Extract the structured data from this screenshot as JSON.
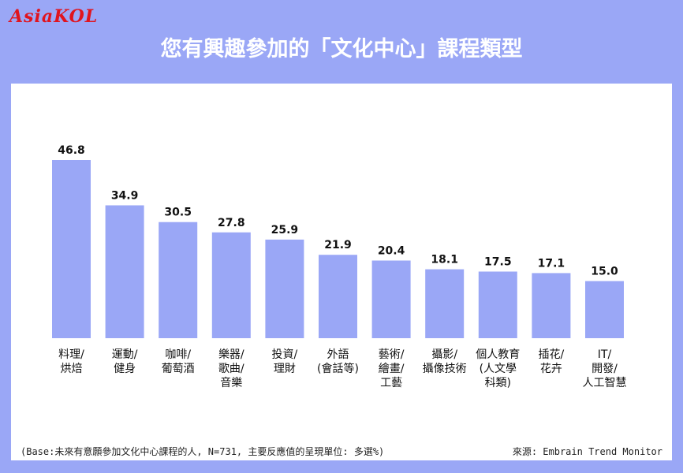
{
  "brand": {
    "logo_text": "AsiaKOL"
  },
  "header": {
    "title": "您有興趣參加的「文化中心」課程類型"
  },
  "colors": {
    "background": "#9aa7f6",
    "bar": "#9aa7f6",
    "title": "#ffffff",
    "logo": "#e0141e"
  },
  "chart_data": {
    "type": "bar",
    "title": "您有興趣參加的「文化中心」課程類型",
    "categories": [
      [
        "料理/",
        "烘焙"
      ],
      [
        "運動/",
        "健身"
      ],
      [
        "咖啡/",
        "葡萄酒"
      ],
      [
        "樂器/",
        "歌曲/",
        "音樂"
      ],
      [
        "投資/",
        "理財"
      ],
      [
        "外語",
        "(會話等)"
      ],
      [
        "藝術/",
        "繪畫/",
        "工藝"
      ],
      [
        "攝影/",
        "攝像技術"
      ],
      [
        "個人教育",
        "(人文學",
        "科類)"
      ],
      [
        "插花/",
        "花卉"
      ],
      [
        "IT/",
        "開發/",
        "人工智慧"
      ]
    ],
    "values": [
      46.8,
      34.9,
      30.5,
      27.8,
      25.9,
      21.9,
      20.4,
      18.1,
      17.5,
      17.1,
      15.0
    ],
    "value_labels": [
      "46.8",
      "34.9",
      "30.5",
      "27.8",
      "25.9",
      "21.9",
      "20.4",
      "18.1",
      "17.5",
      "17.1",
      "15.0"
    ],
    "ylim": [
      0,
      46.8
    ],
    "grid": false,
    "legend": "none"
  },
  "footer": {
    "note": "(Base:未來有意願參加文化中心課程的人, N=731, 主要反應值的呈現單位: 多選%)",
    "source": "來源: Embrain Trend Monitor"
  }
}
